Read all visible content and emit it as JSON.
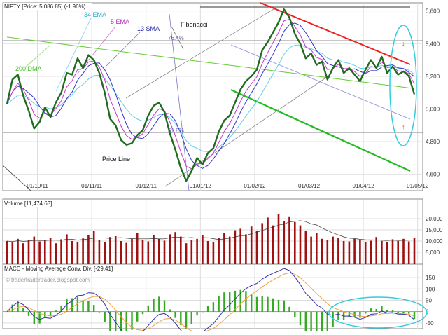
{
  "chart_data": [
    {
      "type": "line",
      "title": "NIFTY [Price: 5,086.85] (-1.96%)",
      "ylim": [
        4500,
        5650
      ],
      "y_ticks": [
        4600,
        4800,
        5000,
        5200,
        5400,
        5600
      ],
      "y_tick_labels": [
        "4,600",
        "4,800",
        "5,000",
        "5,200",
        "5,400",
        "5,600"
      ],
      "x_tick_labels": [
        "01/10/11",
        "01/11/11",
        "01/12/11",
        "01/01/12",
        "01/02/12",
        "01/03/12",
        "01/04/12",
        "01/05/12"
      ],
      "grid": true,
      "annotations": {
        "ema34": "34 EMA",
        "ema5": "5 EMA",
        "sma13": "13 SMA",
        "fibonacci": "Fibonacci",
        "dma200": "200 DMA",
        "fib_76": "76.4%",
        "fib_61": "61.8%",
        "price_line": "Price Line"
      },
      "series": [
        {
          "color": "#1f6b1f",
          "values": [
            5030,
            5180,
            5210,
            5080,
            4990,
            4880,
            4920,
            5010,
            4950,
            5040,
            5100,
            5220,
            5210,
            5310,
            5250,
            5330,
            5300,
            5220,
            5100,
            4940,
            4900,
            4810,
            4780,
            4790,
            4840,
            4870,
            4960,
            5020,
            5040,
            4980,
            4850,
            4750,
            4640,
            4560,
            4620,
            4700,
            4660,
            4730,
            4760,
            4860,
            4930,
            4960,
            5040,
            5120,
            5170,
            5200,
            5240,
            5360,
            5410,
            5470,
            5530,
            5610,
            5560,
            5460,
            5400,
            5310,
            5340,
            5270,
            5290,
            5180,
            5250,
            5300,
            5220,
            5250,
            5210,
            5170,
            5240,
            5300,
            5250,
            5320,
            5220,
            5260,
            5210,
            5230,
            5200,
            5090
          ]
        },
        {
          "color": "#cc33cc",
          "values": []
        },
        {
          "color": "#3333cc",
          "values": []
        },
        {
          "color": "#66ccee",
          "values": []
        },
        {
          "color": "#66cc33",
          "values": []
        }
      ]
    },
    {
      "type": "bar",
      "title": "Volume [11,474.63]",
      "ylim": [
        0,
        25000
      ],
      "y_ticks": [
        5000,
        10000,
        15000,
        20000
      ],
      "y_tick_labels": [
        "5,000",
        "10,000",
        "15,000",
        "20,000"
      ],
      "values": [
        10000,
        9500,
        11000,
        9000,
        10500,
        12000,
        9800,
        10200,
        11500,
        9000,
        10800,
        13000,
        10000,
        9500,
        11200,
        12500,
        14500,
        10300,
        9700,
        11800,
        12200,
        10000,
        9200,
        11000,
        13500,
        10500,
        9800,
        12800,
        11000,
        10200,
        13000,
        14000,
        12000,
        9000,
        10500,
        11000,
        12500,
        10000,
        9500,
        11500,
        13500,
        12000,
        14800,
        15500,
        13000,
        16500,
        14500,
        18000,
        20500,
        17000,
        22000,
        19000,
        21000,
        18500,
        17000,
        14500,
        12000,
        13500,
        11000,
        10500,
        12000,
        11500,
        10000,
        9800,
        11000,
        10500,
        9500,
        10200,
        11800,
        10000,
        9500,
        10800,
        10000,
        11000,
        9800,
        11474
      ]
    },
    {
      "type": "line",
      "title": "MACD - Moving Average Conv. Div. [-29.41]",
      "watermark": "tradertradertrader.blogspot.com",
      "ylim": [
        -75,
        175
      ],
      "y_ticks": [
        -50,
        0,
        50,
        100,
        150
      ],
      "y_tick_labels": [
        "-50",
        "0",
        "50",
        "100",
        "150"
      ],
      "series": [
        {
          "color": "#3333aa",
          "values": []
        },
        {
          "color": "#f0a040",
          "values": []
        }
      ]
    }
  ]
}
